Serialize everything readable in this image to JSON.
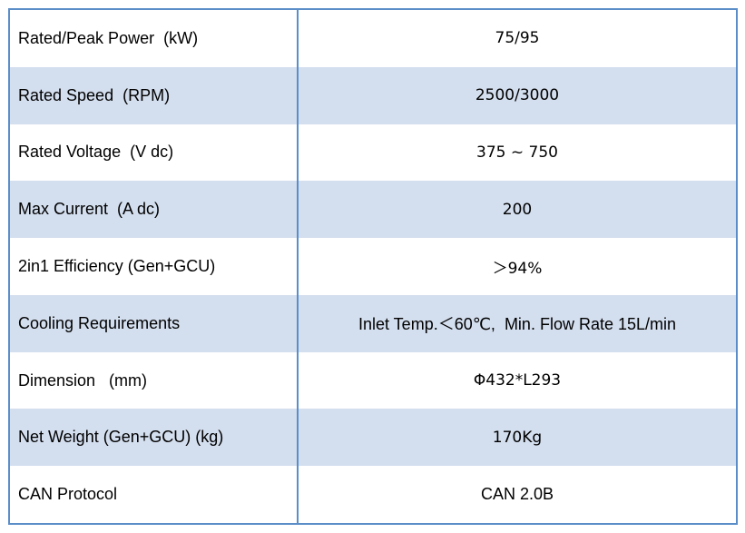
{
  "table": {
    "rows": [
      {
        "label": "Rated/Peak Power  (kW)",
        "value": "75/95"
      },
      {
        "label": "Rated Speed  (RPM)",
        "value": "2500/3000"
      },
      {
        "label": "Rated Voltage  (V dc)",
        "value": "375 ~ 750"
      },
      {
        "label": "Max Current  (A dc)",
        "value": "200"
      },
      {
        "label": "2in1 Efficiency (Gen+GCU)",
        "value": "＞94%"
      },
      {
        "label": "Cooling Requirements",
        "value": "Inlet Temp.＜60℃,  Min. Flow Rate 15L/min"
      },
      {
        "label": "Dimension   (mm)",
        "value": "Φ432*L293"
      },
      {
        "label": "Net Weight (Gen+GCU) (kg)",
        "value": "170Kg"
      },
      {
        "label": "CAN Protocol",
        "value": "CAN 2.0B"
      }
    ]
  },
  "colors": {
    "border": "#5b8ec9",
    "shaded_row": "#d3deee",
    "plain_row": "#ffffff"
  }
}
